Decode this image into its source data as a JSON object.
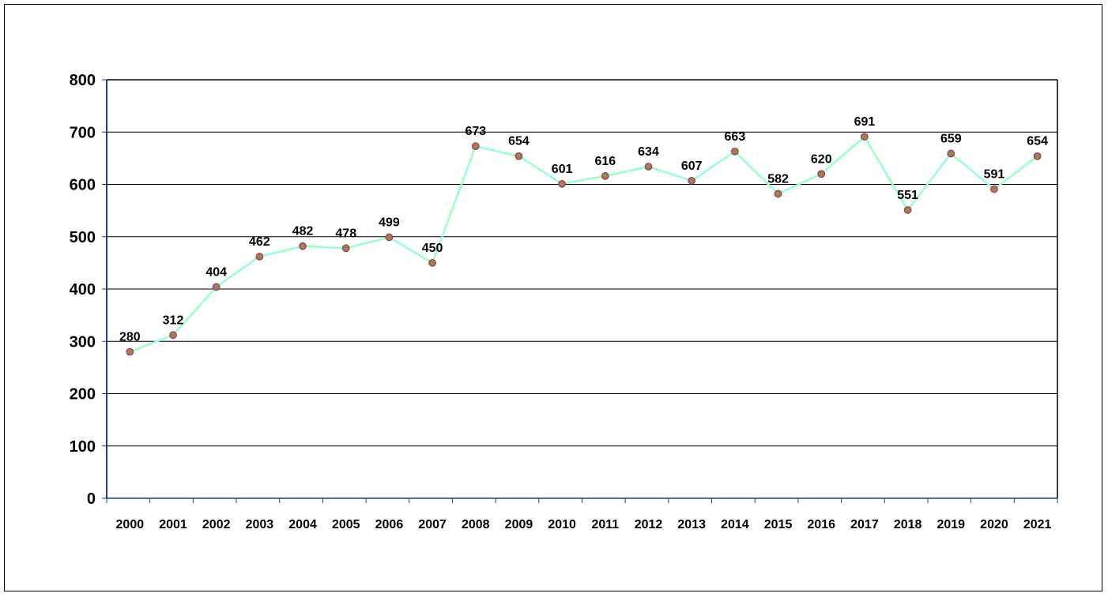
{
  "chart_data": {
    "type": "line",
    "title": "",
    "xlabel": "",
    "ylabel": "",
    "categories": [
      "2000",
      "2001",
      "2002",
      "2003",
      "2004",
      "2005",
      "2006",
      "2007",
      "2008",
      "2009",
      "2010",
      "2011",
      "2012",
      "2013",
      "2014",
      "2015",
      "2016",
      "2017",
      "2018",
      "2019",
      "2020",
      "2021"
    ],
    "series": [
      {
        "values": [
          280,
          312,
          404,
          462,
          482,
          478,
          499,
          450,
          673,
          654,
          601,
          616,
          634,
          607,
          663,
          582,
          620,
          691,
          551,
          659,
          591,
          654
        ]
      }
    ],
    "ylim": [
      0,
      800
    ],
    "yticks": [
      0,
      100,
      200,
      300,
      400,
      500,
      600,
      700,
      800
    ],
    "grid": true,
    "data_labels": true,
    "colors": {
      "line": "#99ffcc",
      "marker": "#c8604a",
      "marker_center": "#5aa85a",
      "grid": "#000000",
      "axis": "#1f3f7f"
    }
  }
}
